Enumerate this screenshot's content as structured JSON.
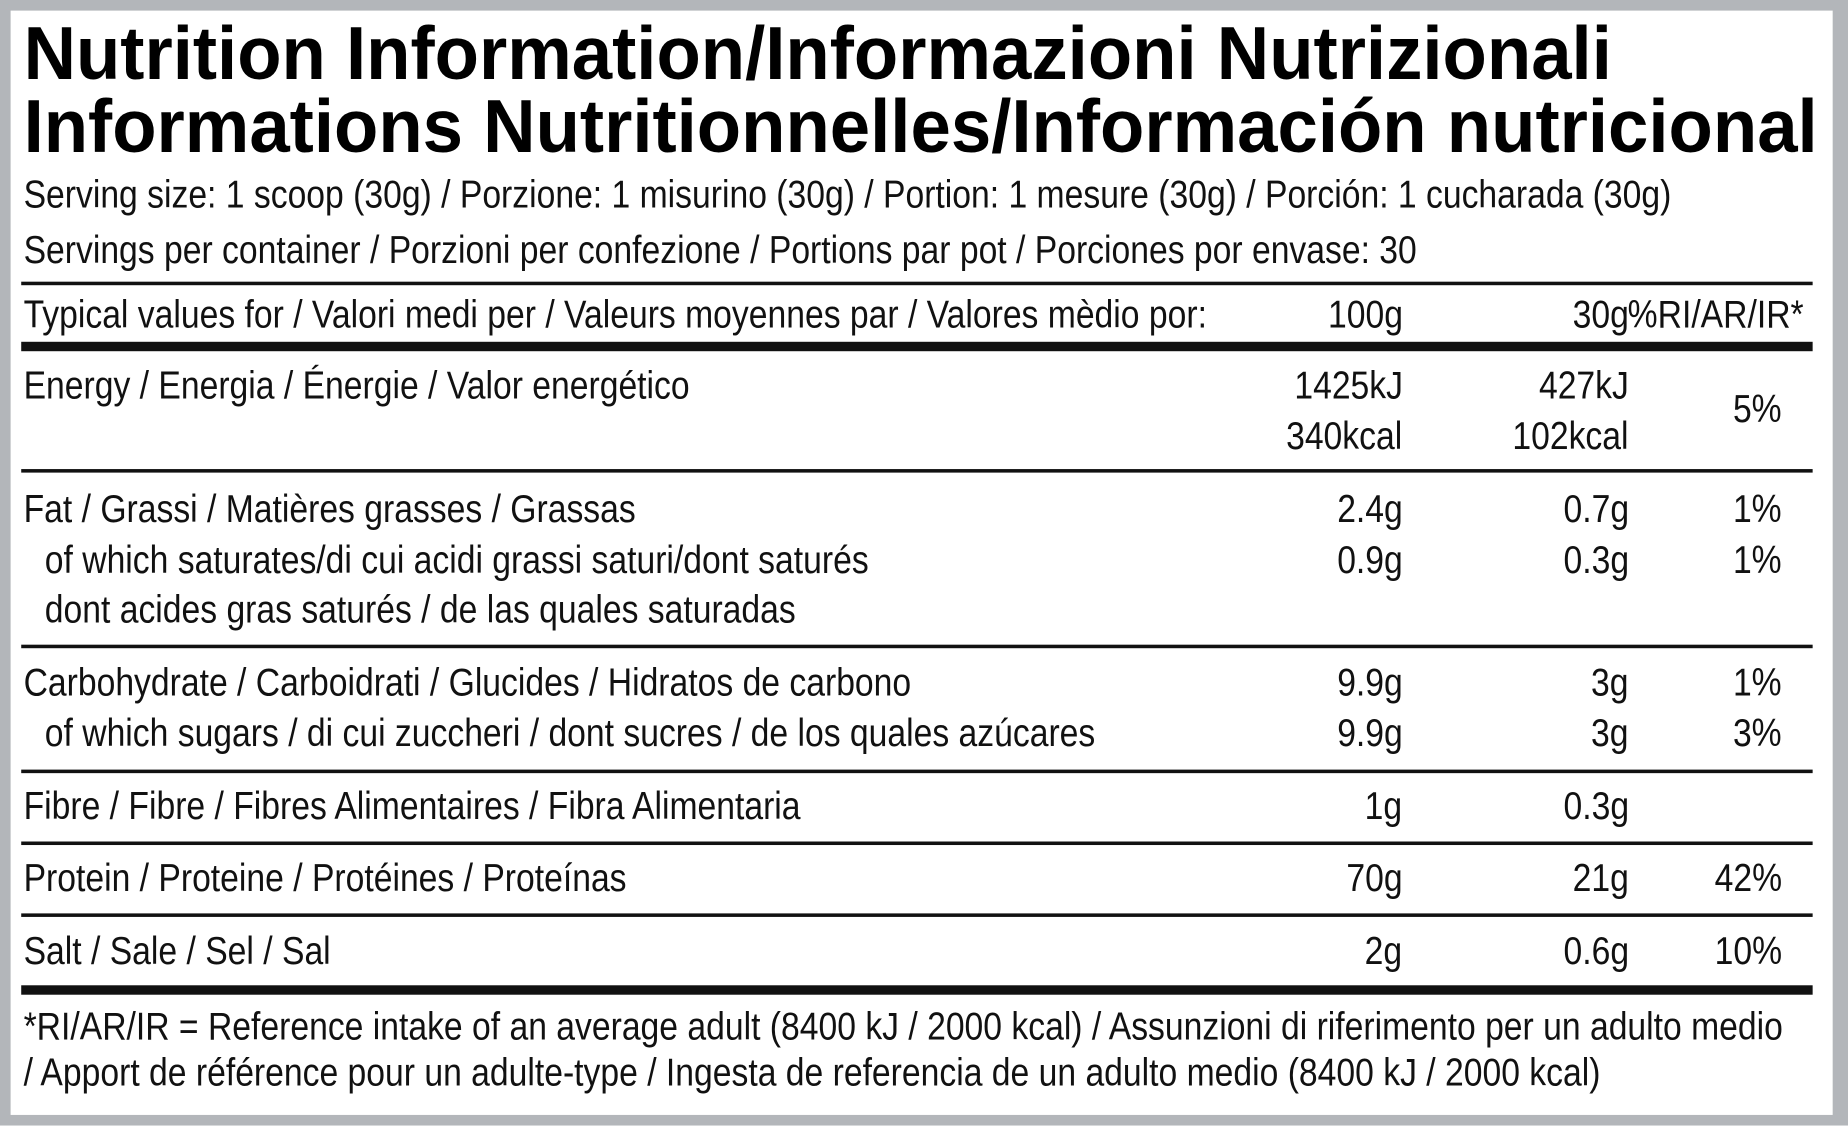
{
  "title": {
    "line1": "Nutrition Information/Informazioni Nutrizionali",
    "line2": "Informations Nutritionnelles/Información nutricional"
  },
  "serving_size": "Serving size: 1 scoop (30g) / Porzione: 1 misurino (30g) / Portion: 1 mesure (30g) / Porción: 1 cucharada (30g)",
  "servings_per_container": "Servings per container / Porzioni per confezione / Portions par pot / Porciones por envase: 30",
  "header": {
    "label": "Typical values for / Valori medi per / Valeurs moyennes par / Valores mèdio por:",
    "col_100g": "100g",
    "col_30g": "30g",
    "col_ri": "%RI/AR/IR*"
  },
  "rows": {
    "energy": {
      "label": "Energy / Energia / Énergie / Valor energético",
      "v100_kj": "1425kJ",
      "v100_kcal": "340kcal",
      "v30_kj": "427kJ",
      "v30_kcal": "102kcal",
      "ri": "5%"
    },
    "fat": {
      "label": "Fat / Grassi / Matières grasses / Grassas",
      "v100": "2.4g",
      "v30": "0.7g",
      "ri": "1%"
    },
    "saturates": {
      "label": "of which saturates/di cui acidi grassi saturi/dont saturés",
      "label2": "dont acides gras saturés / de las quales saturadas",
      "v100": "0.9g",
      "v30": "0.3g",
      "ri": "1%"
    },
    "carbohydrate": {
      "label": "Carbohydrate / Carboidrati / Glucides / Hidratos de carbono",
      "v100": "9.9g",
      "v30": "3g",
      "ri": "1%"
    },
    "sugars": {
      "label": "of which sugars / di cui zuccheri / dont sucres / de los quales azúcares",
      "v100": "9.9g",
      "v30": "3g",
      "ri": "3%"
    },
    "fibre": {
      "label": "Fibre / Fibre / Fibres Alimentaires / Fibra Alimentaria",
      "v100": "1g",
      "v30": "0.3g",
      "ri": ""
    },
    "protein": {
      "label": "Protein / Proteine / Protéines / Proteínas",
      "v100": "70g",
      "v30": "21g",
      "ri": "42%"
    },
    "salt": {
      "label": "Salt / Sale / Sel / Sal",
      "v100": "2g",
      "v30": "0.6g",
      "ri": "10%"
    }
  },
  "footnote": {
    "line1": "*RI/AR/IR = Reference intake of an average adult (8400 kJ / 2000 kcal)  / Assunzioni di riferimento per un adulto medio",
    "line2": "/ Apport de référence pour un adulte-type / Ingesta de referencia de un adulto medio (8400 kJ / 2000 kcal)"
  }
}
